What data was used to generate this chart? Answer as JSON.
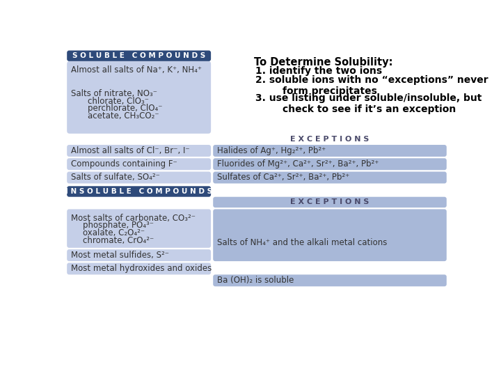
{
  "bg_color": "#ffffff",
  "light_blue": "#c5cfe8",
  "medium_blue": "#a8b8d8",
  "dark_blue_header": "#2e4a7a",
  "header_text_color": "#ffffff",
  "body_text_color": "#333333",
  "exceptions_text_color": "#4a4a6a",
  "title_text": "To Determine Solubility:",
  "title_steps": [
    "1. identify the two ions",
    "2. soluble ions with no “exceptions” never\n        form precipitates",
    "3. use listing under soluble/insoluble, but\n        check to see if it’s an exception"
  ],
  "soluble_header": "S O L U B L E   C O M P O U N D S",
  "insoluble_header": "I N S O L U B L E   C O M P O U N D S",
  "exceptions_label": "E X C E P T I O N S",
  "soluble_row0_left": "Almost all salts of Na⁺, K⁺, NH₄⁺",
  "soluble_row1_lines": [
    "Salts of nitrate, NO₃⁻",
    "chlorate, ClO₃⁻",
    "perchlorate, ClO₄⁻",
    "acetate, CH₃CO₂⁻"
  ],
  "soluble_rows_with_exc": [
    {
      "left": "Almost all salts of Cl⁻, Br⁻, I⁻",
      "right": "Halides of Ag⁺, Hg₂²⁺, Pb²⁺"
    },
    {
      "left": "Compounds containing F⁻",
      "right": "Fluorides of Mg²⁺, Ca²⁺, Sr²⁺, Ba²⁺, Pb²⁺"
    },
    {
      "left": "Salts of sulfate, SO₄²⁻",
      "right": "Sulfates of Ca²⁺, Sr²⁺, Ba²⁺, Pb²⁺"
    }
  ],
  "insoluble_rows": [
    {
      "left_lines": [
        "Most salts of carbonate, CO₃²⁻",
        "phosphate, PO₄³⁻",
        "oxalate, C₂O₄²⁻",
        "chromate, CrO₄²⁻"
      ],
      "right": "Salts of NH₄⁺ and the alkali metal cations"
    },
    {
      "left_lines": [
        "Most metal sulfides, S²⁻"
      ],
      "right": null
    },
    {
      "left_lines": [
        "Most metal hydroxides and oxides"
      ],
      "right": "Ba (OH)₂ is soluble"
    }
  ]
}
